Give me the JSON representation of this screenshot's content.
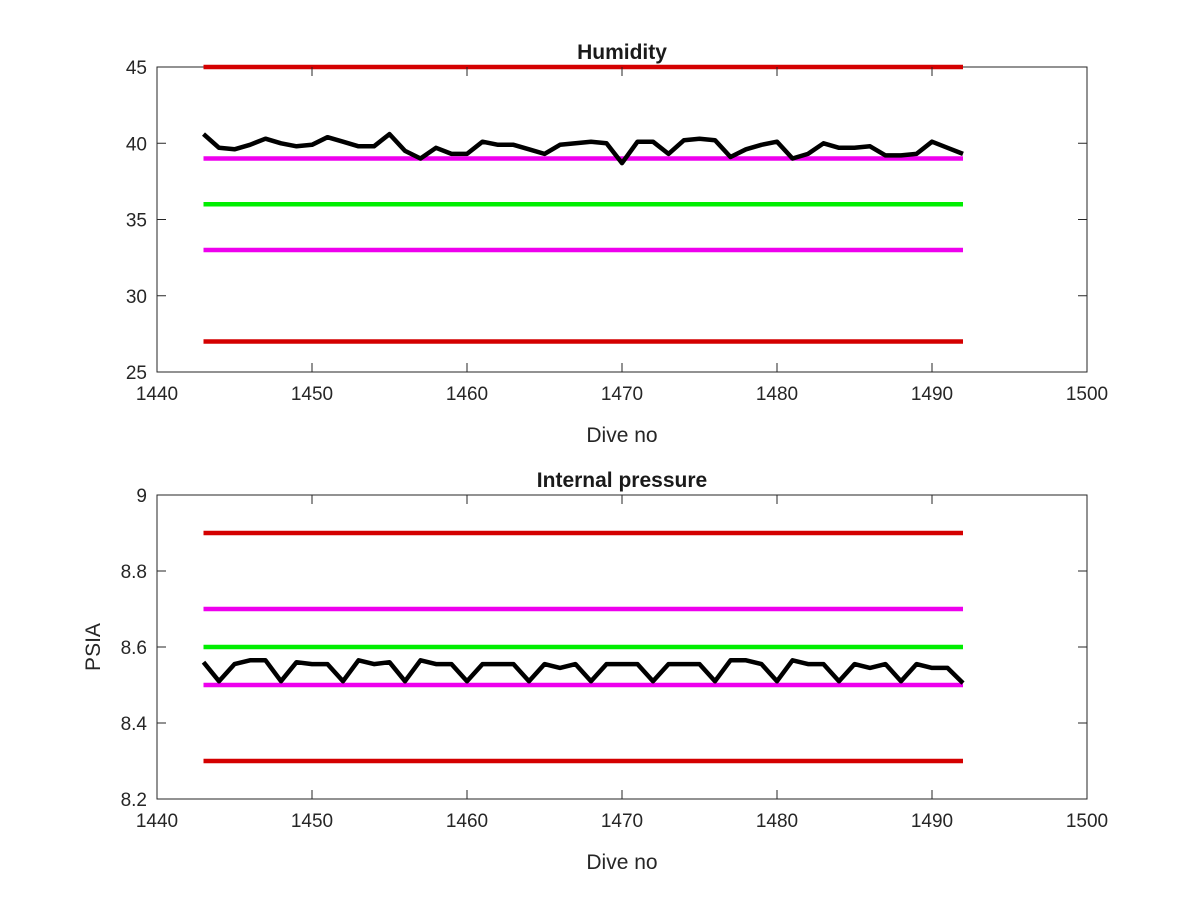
{
  "chart_data": [
    {
      "type": "line",
      "title": "Humidity",
      "xlabel": "Dive no",
      "ylabel": "",
      "xlim": [
        1440,
        1500
      ],
      "ylim": [
        25,
        45
      ],
      "xticks": [
        1440,
        1450,
        1460,
        1470,
        1480,
        1490,
        1500
      ],
      "yticks": [
        25,
        30,
        35,
        40,
        45
      ],
      "xtick_labels": [
        "1440",
        "1450",
        "1460",
        "1470",
        "1480",
        "1490",
        "1500"
      ],
      "ytick_labels": [
        "25",
        "30",
        "35",
        "40",
        "45"
      ],
      "grid": false,
      "series": [
        {
          "color": "#d40000",
          "x": [
            1443,
            1492
          ],
          "y": [
            45,
            45
          ]
        },
        {
          "color": "#ee00ee",
          "x": [
            1443,
            1492
          ],
          "y": [
            39,
            39
          ]
        },
        {
          "color": "#00ee00",
          "x": [
            1443,
            1492
          ],
          "y": [
            36,
            36
          ]
        },
        {
          "color": "#ee00ee",
          "x": [
            1443,
            1492
          ],
          "y": [
            33,
            33
          ]
        },
        {
          "color": "#d40000",
          "x": [
            1443,
            1492
          ],
          "y": [
            27,
            27
          ]
        },
        {
          "color": "#000000",
          "x": [
            1443,
            1444,
            1445,
            1446,
            1447,
            1448,
            1449,
            1450,
            1451,
            1452,
            1453,
            1454,
            1455,
            1456,
            1457,
            1458,
            1459,
            1460,
            1461,
            1462,
            1463,
            1464,
            1465,
            1466,
            1467,
            1468,
            1469,
            1470,
            1471,
            1472,
            1473,
            1474,
            1475,
            1476,
            1477,
            1478,
            1479,
            1480,
            1481,
            1482,
            1483,
            1484,
            1485,
            1486,
            1487,
            1488,
            1489,
            1490,
            1491,
            1492
          ],
          "y": [
            40.6,
            39.7,
            39.6,
            39.9,
            40.3,
            40.0,
            39.8,
            39.9,
            40.4,
            40.1,
            39.8,
            39.8,
            40.6,
            39.5,
            39.0,
            39.7,
            39.3,
            39.3,
            40.1,
            39.9,
            39.9,
            39.6,
            39.3,
            39.9,
            40.0,
            40.1,
            40.0,
            38.7,
            40.1,
            40.1,
            39.3,
            40.2,
            40.3,
            40.2,
            39.1,
            39.6,
            39.9,
            40.1,
            39.0,
            39.3,
            40.0,
            39.7,
            39.7,
            39.8,
            39.2,
            39.2,
            39.3,
            40.1,
            39.7,
            39.3
          ]
        }
      ]
    },
    {
      "type": "line",
      "title": "Internal pressure",
      "xlabel": "Dive no",
      "ylabel": "PSIA",
      "xlim": [
        1440,
        1500
      ],
      "ylim": [
        8.2,
        9
      ],
      "xticks": [
        1440,
        1450,
        1460,
        1470,
        1480,
        1490,
        1500
      ],
      "yticks": [
        8.2,
        8.4,
        8.6,
        8.8,
        9
      ],
      "xtick_labels": [
        "1440",
        "1450",
        "1460",
        "1470",
        "1480",
        "1490",
        "1500"
      ],
      "ytick_labels": [
        "8.2",
        "8.4",
        "8.6",
        "8.8",
        "9"
      ],
      "grid": false,
      "series": [
        {
          "color": "#d40000",
          "x": [
            1443,
            1492
          ],
          "y": [
            8.9,
            8.9
          ]
        },
        {
          "color": "#ee00ee",
          "x": [
            1443,
            1492
          ],
          "y": [
            8.7,
            8.7
          ]
        },
        {
          "color": "#00ee00",
          "x": [
            1443,
            1492
          ],
          "y": [
            8.6,
            8.6
          ]
        },
        {
          "color": "#ee00ee",
          "x": [
            1443,
            1492
          ],
          "y": [
            8.5,
            8.5
          ]
        },
        {
          "color": "#d40000",
          "x": [
            1443,
            1492
          ],
          "y": [
            8.3,
            8.3
          ]
        },
        {
          "color": "#000000",
          "x": [
            1443,
            1444,
            1445,
            1446,
            1447,
            1448,
            1449,
            1450,
            1451,
            1452,
            1453,
            1454,
            1455,
            1456,
            1457,
            1458,
            1459,
            1460,
            1461,
            1462,
            1463,
            1464,
            1465,
            1466,
            1467,
            1468,
            1469,
            1470,
            1471,
            1472,
            1473,
            1474,
            1475,
            1476,
            1477,
            1478,
            1479,
            1480,
            1481,
            1482,
            1483,
            1484,
            1485,
            1486,
            1487,
            1488,
            1489,
            1490,
            1491,
            1492
          ],
          "y": [
            8.56,
            8.51,
            8.555,
            8.565,
            8.565,
            8.51,
            8.56,
            8.555,
            8.555,
            8.51,
            8.565,
            8.555,
            8.56,
            8.51,
            8.565,
            8.555,
            8.555,
            8.51,
            8.555,
            8.555,
            8.555,
            8.51,
            8.555,
            8.545,
            8.555,
            8.51,
            8.555,
            8.555,
            8.555,
            8.51,
            8.555,
            8.555,
            8.555,
            8.51,
            8.565,
            8.565,
            8.555,
            8.51,
            8.565,
            8.555,
            8.555,
            8.51,
            8.555,
            8.545,
            8.555,
            8.51,
            8.555,
            8.545,
            8.545,
            8.505
          ]
        }
      ]
    }
  ]
}
